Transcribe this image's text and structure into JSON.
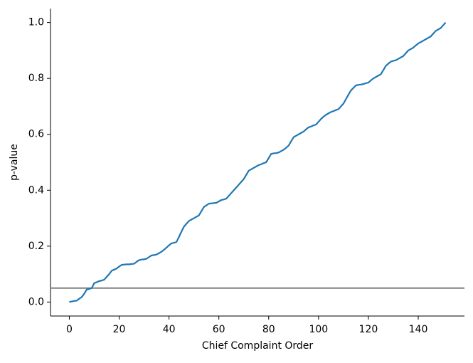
{
  "chart_data": {
    "type": "line",
    "xlabel": "Chief Complaint Order",
    "ylabel": "p-value",
    "x": [
      0,
      1,
      2,
      3,
      4,
      5,
      6,
      7,
      8,
      9,
      10,
      11,
      12,
      13,
      14,
      15,
      16,
      17,
      18,
      19,
      20,
      21,
      22,
      23,
      24,
      25,
      26,
      27,
      28,
      29,
      30,
      31,
      32,
      33,
      34,
      35,
      36,
      37,
      38,
      39,
      40,
      41,
      42,
      43,
      44,
      45,
      46,
      47,
      48,
      49,
      50,
      51,
      52,
      53,
      54,
      55,
      56,
      57,
      58,
      59,
      60,
      61,
      62,
      63,
      64,
      65,
      66,
      67,
      68,
      69,
      70,
      71,
      72,
      73,
      74,
      75,
      76,
      77,
      78,
      79,
      80,
      81,
      82,
      83,
      84,
      85,
      86,
      87,
      88,
      89,
      90,
      91,
      92,
      93,
      94,
      95,
      96,
      97,
      98,
      99,
      100,
      101,
      102,
      103,
      104,
      105,
      106,
      107,
      108,
      109,
      110,
      111,
      112,
      113,
      114,
      115,
      116,
      117,
      118,
      119,
      120,
      121,
      122,
      123,
      124,
      125,
      126,
      127,
      128,
      129,
      130,
      131,
      132,
      133,
      134,
      135,
      136,
      137,
      138,
      139,
      140,
      141,
      142,
      143,
      144,
      145,
      146,
      147,
      148,
      149,
      150,
      151
    ],
    "values": [
      0.0,
      0.002,
      0.004,
      0.005,
      0.012,
      0.018,
      0.03,
      0.045,
      0.047,
      0.05,
      0.068,
      0.071,
      0.075,
      0.077,
      0.08,
      0.09,
      0.1,
      0.112,
      0.116,
      0.12,
      0.127,
      0.133,
      0.134,
      0.135,
      0.135,
      0.136,
      0.137,
      0.144,
      0.15,
      0.152,
      0.153,
      0.155,
      0.161,
      0.167,
      0.168,
      0.17,
      0.175,
      0.18,
      0.187,
      0.195,
      0.203,
      0.21,
      0.212,
      0.215,
      0.233,
      0.252,
      0.27,
      0.28,
      0.29,
      0.295,
      0.3,
      0.305,
      0.31,
      0.325,
      0.34,
      0.346,
      0.352,
      0.353,
      0.354,
      0.355,
      0.36,
      0.365,
      0.367,
      0.37,
      0.38,
      0.39,
      0.4,
      0.41,
      0.42,
      0.43,
      0.44,
      0.455,
      0.47,
      0.475,
      0.48,
      0.485,
      0.49,
      0.493,
      0.497,
      0.5,
      0.515,
      0.53,
      0.532,
      0.533,
      0.535,
      0.54,
      0.545,
      0.552,
      0.56,
      0.575,
      0.59,
      0.595,
      0.6,
      0.605,
      0.61,
      0.618,
      0.625,
      0.628,
      0.632,
      0.635,
      0.645,
      0.655,
      0.663,
      0.67,
      0.675,
      0.68,
      0.683,
      0.687,
      0.69,
      0.7,
      0.71,
      0.726,
      0.742,
      0.757,
      0.766,
      0.775,
      0.777,
      0.778,
      0.78,
      0.783,
      0.785,
      0.793,
      0.8,
      0.805,
      0.81,
      0.815,
      0.83,
      0.845,
      0.853,
      0.86,
      0.863,
      0.865,
      0.87,
      0.875,
      0.88,
      0.89,
      0.9,
      0.905,
      0.91,
      0.918,
      0.925,
      0.93,
      0.935,
      0.94,
      0.945,
      0.95,
      0.96,
      0.97,
      0.975,
      0.98,
      0.99,
      1.0
    ],
    "color": "#1f77b4",
    "hline": 0.05,
    "hline_color": "#808080",
    "xlim": [
      -7.55,
      158.55
    ],
    "ylim": [
      -0.05,
      1.05
    ],
    "xticks": [
      0,
      20,
      40,
      60,
      80,
      100,
      120,
      140
    ],
    "yticks": [
      {
        "value": 0,
        "label": "0.0"
      },
      0.2,
      0.4,
      0.6,
      0.8,
      {
        "value": 1,
        "label": "1.0"
      }
    ]
  }
}
